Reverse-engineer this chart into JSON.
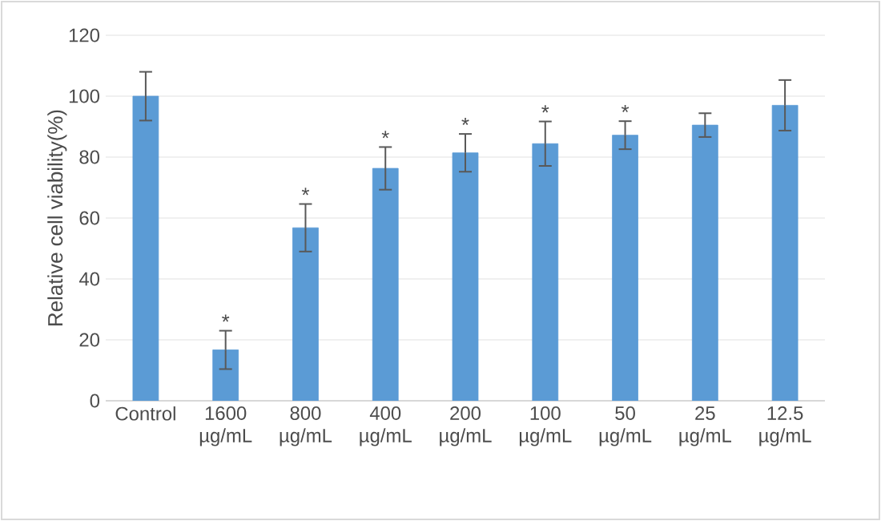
{
  "chart_data": {
    "type": "bar",
    "ylabel": "Relative cell viability(%)",
    "categories": [
      "Control",
      "1600 µg/mL",
      "800 µg/mL",
      "400 µg/mL",
      "200 µg/mL",
      "100 µg/mL",
      "50 µg/mL",
      "25 µg/mL",
      "12.5 µg/mL"
    ],
    "values": [
      100,
      16.7,
      56.8,
      76.3,
      81.4,
      84.4,
      87.2,
      90.5,
      97
    ],
    "errors": [
      8,
      6.3,
      7.8,
      7,
      6.2,
      7.3,
      4.6,
      3.9,
      8.3
    ],
    "color": "#5b9bd5",
    "ylim": [
      0,
      120
    ],
    "yticks": [
      0,
      20,
      40,
      60,
      80,
      100,
      120
    ],
    "grid": "y",
    "annotations": [
      {
        "text": "*",
        "x": "1600 µg/mL",
        "y": 23
      },
      {
        "text": "*",
        "x": "800 µg/mL",
        "y": 64.6
      },
      {
        "text": "*",
        "x": "400 µg/mL",
        "y": 83.3
      },
      {
        "text": "*",
        "x": "200 µg/mL",
        "y": 87.6
      },
      {
        "text": "*",
        "x": "100 µg/mL",
        "y": 91.7
      },
      {
        "text": "*",
        "x": "50 µg/mL",
        "y": 91.8
      }
    ]
  }
}
